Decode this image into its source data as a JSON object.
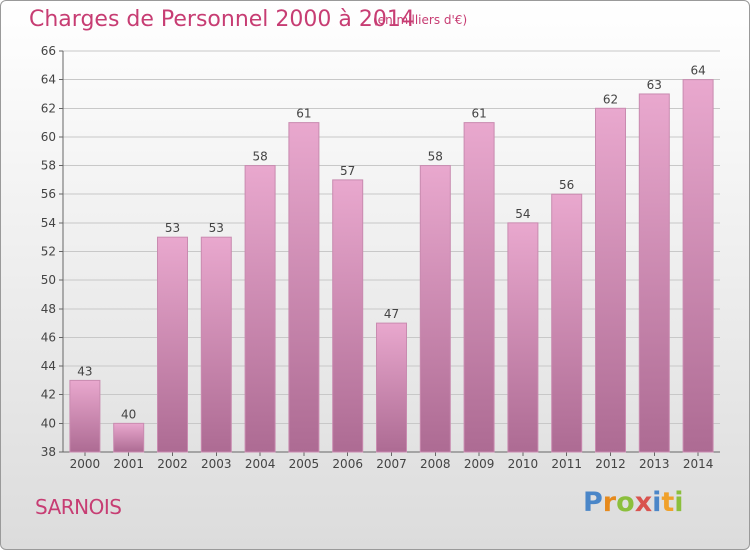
{
  "header": {
    "title": "Charges de Personnel 2000 à 2014",
    "subtitle": "(en milliers d'€)"
  },
  "footer": {
    "commune": "SARNOIS",
    "logo": "Proxiti"
  },
  "colors": {
    "title": "#c73d73",
    "bar_top": "#e9a8ce",
    "bar_bottom": "#ad6b93",
    "bar_side": "#c98bb0"
  },
  "chart_data": {
    "type": "bar",
    "categories": [
      "2000",
      "2001",
      "2002",
      "2003",
      "2004",
      "2005",
      "2006",
      "2007",
      "2008",
      "2009",
      "2010",
      "2011",
      "2012",
      "2013",
      "2014"
    ],
    "values": [
      43,
      40,
      53,
      53,
      58,
      61,
      57,
      47,
      58,
      61,
      54,
      56,
      62,
      63,
      64
    ],
    "ylim": [
      38,
      66
    ],
    "yticks": [
      38,
      40,
      42,
      44,
      46,
      48,
      50,
      52,
      54,
      56,
      58,
      60,
      62,
      64,
      66
    ],
    "grid": true,
    "title": "Charges de Personnel 2000 à 2014",
    "xlabel": "",
    "ylabel": ""
  }
}
